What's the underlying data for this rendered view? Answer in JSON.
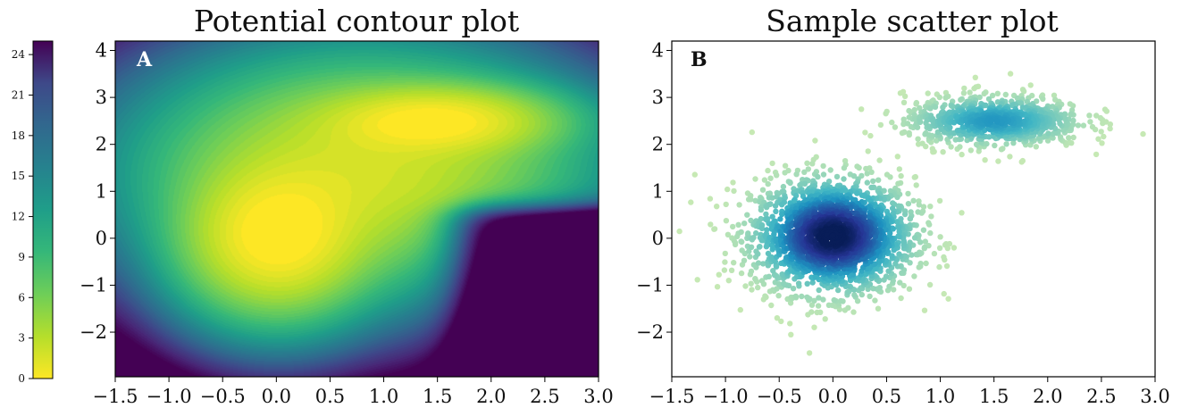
{
  "chart_data": [
    {
      "type": "heatmap",
      "title": "Potential contour plot",
      "panel_label": "A",
      "xlabel": "",
      "ylabel": "",
      "xlim": [
        -1.5,
        3.0
      ],
      "ylim": [
        -2.95,
        4.2
      ],
      "x_ticks": [
        "−1.5",
        "−1.0",
        "−0.5",
        "0.0",
        "0.5",
        "1.0",
        "1.5",
        "2.0",
        "2.5",
        "3.0"
      ],
      "x_tick_values": [
        -1.5,
        -1.0,
        -0.5,
        0.0,
        0.5,
        1.0,
        1.5,
        2.0,
        2.5,
        3.0
      ],
      "y_ticks": [
        "−2",
        "−1",
        "0",
        "1",
        "2",
        "3",
        "4"
      ],
      "y_tick_values": [
        -2,
        -1,
        0,
        1,
        2,
        3,
        4
      ],
      "minima": [
        {
          "x": 0.0,
          "y": 0.0,
          "value": 0.0
        },
        {
          "x": 1.5,
          "y": 2.5,
          "value": 2.0
        }
      ],
      "colormap": "viridis (reversed)",
      "colorbar": {
        "range": [
          0,
          25
        ],
        "ticks": [
          "0",
          "3",
          "6",
          "9",
          "12",
          "15",
          "18",
          "21",
          "24"
        ],
        "tick_values": [
          0,
          3,
          6,
          9,
          12,
          15,
          18,
          21,
          24
        ],
        "position": "left"
      }
    },
    {
      "type": "scatter",
      "title": "Sample scatter plot",
      "panel_label": "B",
      "xlabel": "",
      "ylabel": "",
      "xlim": [
        -1.5,
        3.0
      ],
      "ylim": [
        -2.95,
        4.2
      ],
      "x_ticks": [
        "−1.5",
        "−1.0",
        "−0.5",
        "0.0",
        "0.5",
        "1.0",
        "1.5",
        "2.0",
        "2.5",
        "3.0"
      ],
      "x_tick_values": [
        -1.5,
        -1.0,
        -0.5,
        0.0,
        0.5,
        1.0,
        1.5,
        2.0,
        2.5,
        3.0
      ],
      "y_ticks": [
        "−2",
        "−1",
        "0",
        "1",
        "2",
        "3",
        "4"
      ],
      "y_tick_values": [
        -2,
        -1,
        0,
        1,
        2,
        3,
        4
      ],
      "clusters": [
        {
          "center": [
            0.0,
            0.05
          ],
          "spread": [
            0.38,
            0.62
          ],
          "weight": 0.72
        },
        {
          "center": [
            1.5,
            2.5
          ],
          "spread": [
            0.42,
            0.28
          ],
          "weight": 0.28
        }
      ],
      "colormap": "YlGnBu (density)"
    }
  ]
}
